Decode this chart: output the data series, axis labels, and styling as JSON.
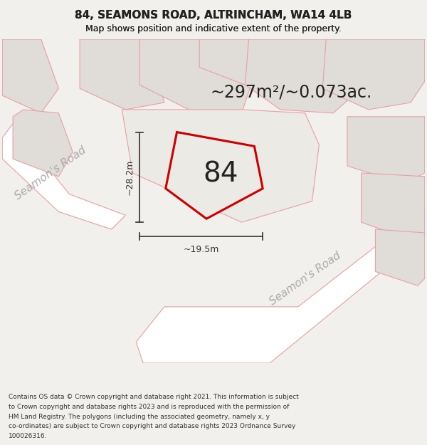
{
  "title_line1": "84, SEAMONS ROAD, ALTRINCHAM, WA14 4LB",
  "title_line2": "Map shows position and indicative extent of the property.",
  "area_text": "~297m²/~0.073ac.",
  "property_number": "84",
  "dim1_text": "~28.2m",
  "dim2_text": "~19.5m",
  "road_label1": "Seamon's Road",
  "road_label2": "Seamon's Road",
  "footer_text": "Contains OS data © Crown copyright and database right 2021. This information is subject to Crown copyright and database rights 2023 and is reproduced with the permission of HM Land Registry. The polygons (including the associated geometry, namely x, y co-ordinates) are subject to Crown copyright and database rights 2023 Ordnance Survey 100026316.",
  "bg_color": "#f2f0ec",
  "map_bg": "#f2f0ec",
  "bld_fill": "#e0ddd8",
  "bld_outline": "#e8a0a0",
  "road_fill": "#ffffff",
  "road_outline": "#e8a0a0",
  "prop_block_fill": "#eceae5",
  "prop_fill": "#eceae5",
  "prop_outline": "#cc0000",
  "text_color": "#222222",
  "dim_color": "#333333",
  "road_text_color": "#aaaaaa",
  "footer_color": "#333333",
  "title_fontsize": 11,
  "subtitle_fontsize": 9,
  "area_fontsize": 17,
  "prop_num_fontsize": 28,
  "dim_fontsize": 9,
  "road_label_fontsize": 11,
  "footer_fontsize": 6.5
}
